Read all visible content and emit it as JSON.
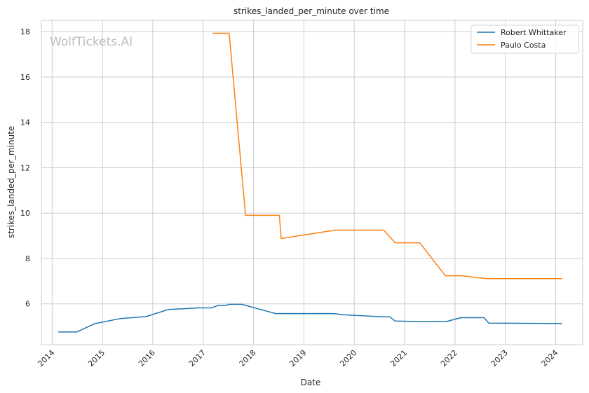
{
  "chart_data": {
    "type": "line",
    "title": "strikes_landed_per_minute over time",
    "xlabel": "Date",
    "ylabel": "strikes_landed_per_minute",
    "watermark": "WolfTickets.AI",
    "x_ticks": [
      "2014",
      "2015",
      "2016",
      "2017",
      "2018",
      "2019",
      "2020",
      "2021",
      "2022",
      "2023",
      "2024"
    ],
    "y_ticks": [
      6,
      8,
      10,
      12,
      14,
      16,
      18
    ],
    "xlim": [
      "2013-10-15",
      "2024-07-15"
    ],
    "ylim": [
      4.2,
      18.5
    ],
    "grid": true,
    "legend_position": "top-right",
    "series": [
      {
        "name": "Robert Whittaker",
        "color": "#1f77b4",
        "points": [
          [
            "2014-02-15",
            4.76
          ],
          [
            "2014-06-28",
            4.76
          ],
          [
            "2014-11-08",
            5.13
          ],
          [
            "2015-05-10",
            5.35
          ],
          [
            "2015-11-14",
            5.44
          ],
          [
            "2016-04-23",
            5.75
          ],
          [
            "2016-12-03",
            5.82
          ],
          [
            "2017-03-01",
            5.82
          ],
          [
            "2017-04-15",
            5.92
          ],
          [
            "2017-06-15",
            5.93
          ],
          [
            "2017-07-08",
            5.98
          ],
          [
            "2017-10-07",
            5.98
          ],
          [
            "2018-06-09",
            5.57
          ],
          [
            "2019-08-10",
            5.57
          ],
          [
            "2019-10-06",
            5.52
          ],
          [
            "2020-07-25",
            5.43
          ],
          [
            "2020-09-15",
            5.43
          ],
          [
            "2020-10-24",
            5.24
          ],
          [
            "2021-04-17",
            5.22
          ],
          [
            "2021-10-30",
            5.22
          ],
          [
            "2022-02-12",
            5.39
          ],
          [
            "2022-07-30",
            5.39
          ],
          [
            "2022-09-03",
            5.15
          ],
          [
            "2024-02-17",
            5.13
          ]
        ]
      },
      {
        "name": "Paulo Costa",
        "color": "#ff7f0e",
        "points": [
          [
            "2017-03-11",
            17.93
          ],
          [
            "2017-07-08",
            17.93
          ],
          [
            "2017-11-04",
            9.9
          ],
          [
            "2018-07-07",
            9.9
          ],
          [
            "2018-07-20",
            8.88
          ],
          [
            "2019-08-17",
            9.25
          ],
          [
            "2020-08-01",
            9.25
          ],
          [
            "2020-10-24",
            8.69
          ],
          [
            "2021-04-20",
            8.69
          ],
          [
            "2021-10-23",
            7.24
          ],
          [
            "2022-02-15",
            7.24
          ],
          [
            "2022-08-20",
            7.11
          ],
          [
            "2024-02-17",
            7.11
          ]
        ]
      }
    ]
  }
}
